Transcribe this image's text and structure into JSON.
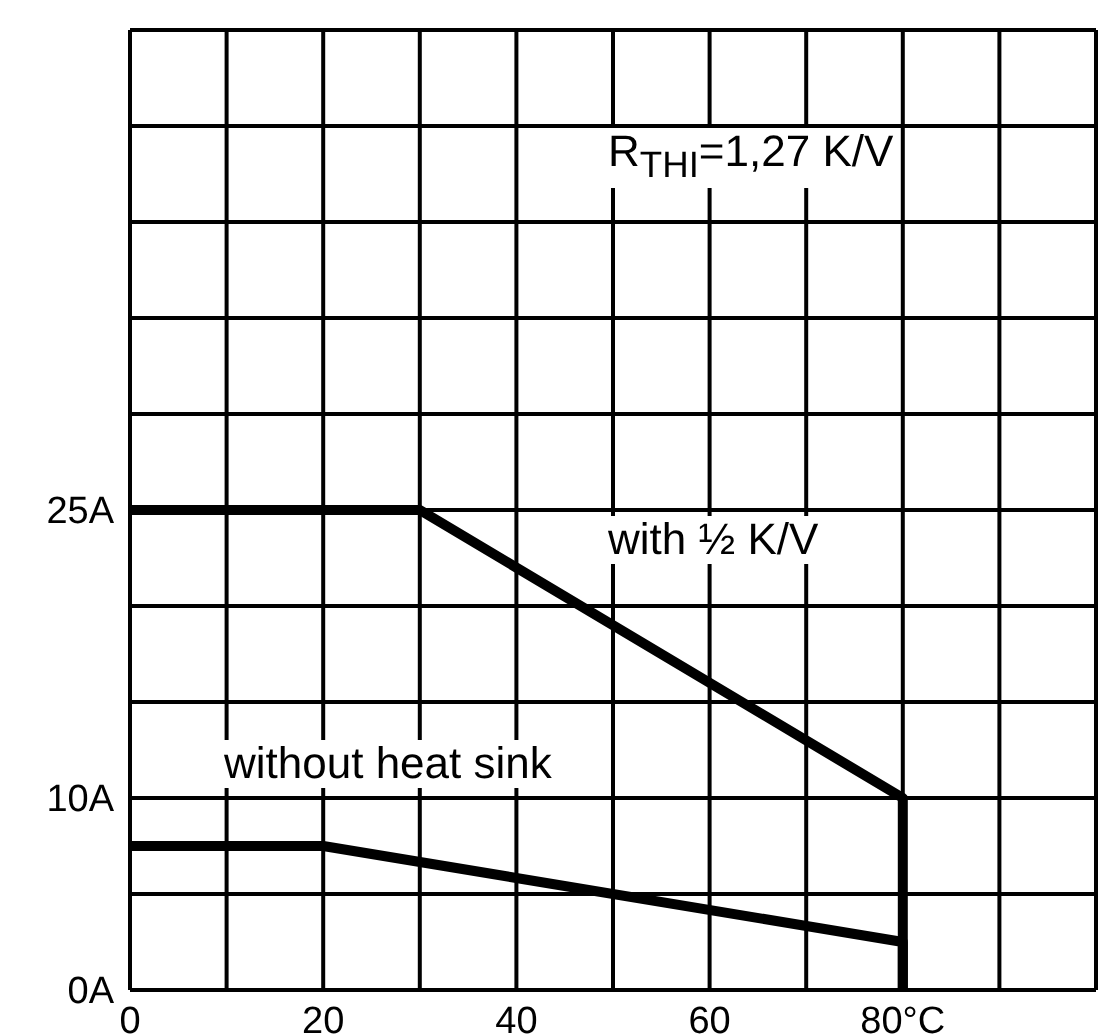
{
  "chart_data": {
    "type": "line",
    "series": [
      {
        "color": "#000000",
        "x": [
          0,
          30,
          80,
          80
        ],
        "values": [
          25,
          25,
          10,
          0
        ]
      },
      {
        "color": "#000000",
        "x": [
          0,
          20,
          80,
          80
        ],
        "values": [
          7.5,
          7.5,
          2.5,
          0
        ]
      }
    ],
    "xlim": [
      0,
      100
    ],
    "xticks": [
      0,
      {
        "value": 10,
        "label": null
      },
      20,
      {
        "value": 30,
        "label": null
      },
      40,
      {
        "value": 50,
        "label": null
      },
      60,
      {
        "value": 70,
        "label": null
      },
      {
        "value": 80,
        "label": "80°C"
      },
      {
        "value": 90,
        "label": null
      },
      {
        "value": 100,
        "label": null
      }
    ],
    "ylim": [
      0,
      50
    ],
    "yticks": [
      {
        "value": 0,
        "label": "0A"
      },
      {
        "value": 5,
        "label": null
      },
      {
        "value": 10,
        "label": "10A"
      },
      {
        "value": 15,
        "label": null
      },
      {
        "value": 20,
        "label": null
      },
      {
        "value": 25,
        "label": "25A"
      },
      {
        "value": 30,
        "label": null
      },
      {
        "value": 35,
        "label": null
      },
      {
        "value": 40,
        "label": null
      },
      {
        "value": 45,
        "label": null
      },
      {
        "value": 50,
        "label": null
      }
    ],
    "grid": true,
    "legend": false,
    "marker": "none",
    "line_style": "solid",
    "annotations": [
      "R$_{THI}$=1,27 K/V",
      "with ½ K/V",
      "without heat sink"
    ]
  }
}
